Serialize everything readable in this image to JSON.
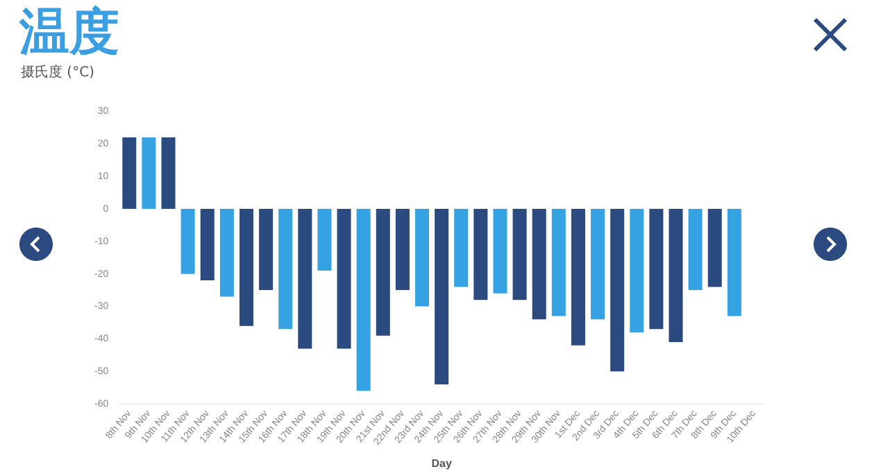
{
  "chart_data": {
    "type": "bar",
    "title": "温度",
    "subtitle": "摄氏度 (°C)",
    "xlabel": "Day",
    "categories": [
      "8th Nov",
      "9th Nov",
      "10th Nov",
      "11th Nov",
      "12th Nov",
      "13th Nov",
      "14th Nov",
      "15th Nov",
      "16th Nov",
      "17th Nov",
      "18th Nov",
      "19th Nov",
      "20th Nov",
      "21st Nov",
      "22nd Nov",
      "23rd Nov",
      "24th Nov",
      "25th Nov",
      "26th Nov",
      "27th Nov",
      "28th Nov",
      "29th Nov",
      "30th Nov",
      "1st Dec",
      "2nd Dec",
      "3rd Dec",
      "4th Dec",
      "5th Dec",
      "6th Dec",
      "7th Dec",
      "8th Dec",
      "9th Dec",
      "10th Dec"
    ],
    "values": [
      22,
      22,
      22,
      -20,
      -22,
      -27,
      -36,
      -25,
      -37,
      -43,
      -19,
      -43,
      -56,
      -39,
      -25,
      -30,
      -54,
      -24,
      -28,
      -26,
      -28,
      -34,
      -33,
      -42,
      -34,
      -50,
      -38,
      -37,
      -41,
      -25,
      -24,
      -33,
      null
    ],
    "colors": [
      "#2b4a80",
      "#35a3e3",
      "#2b4a80",
      "#35a3e3",
      "#2b4a80",
      "#35a3e3",
      "#2b4a80",
      "#2b4a80",
      "#35a3e3",
      "#2b4a80",
      "#35a3e3",
      "#2b4a80",
      "#35a3e3",
      "#2b4a80",
      "#2b4a80",
      "#35a3e3",
      "#2b4a80",
      "#35a3e3",
      "#2b4a80",
      "#35a3e3",
      "#2b4a80",
      "#2b4a80",
      "#35a3e3",
      "#2b4a80",
      "#35a3e3",
      "#2b4a80",
      "#35a3e3",
      "#2b4a80",
      "#2b4a80",
      "#35a3e3",
      "#2b4a80",
      "#35a3e3",
      null
    ],
    "ylim": [
      -60,
      30
    ],
    "yticks": [
      -60,
      -50,
      -40,
      -30,
      -20,
      -10,
      0,
      10,
      20,
      30
    ],
    "grid": false,
    "legend": false
  }
}
